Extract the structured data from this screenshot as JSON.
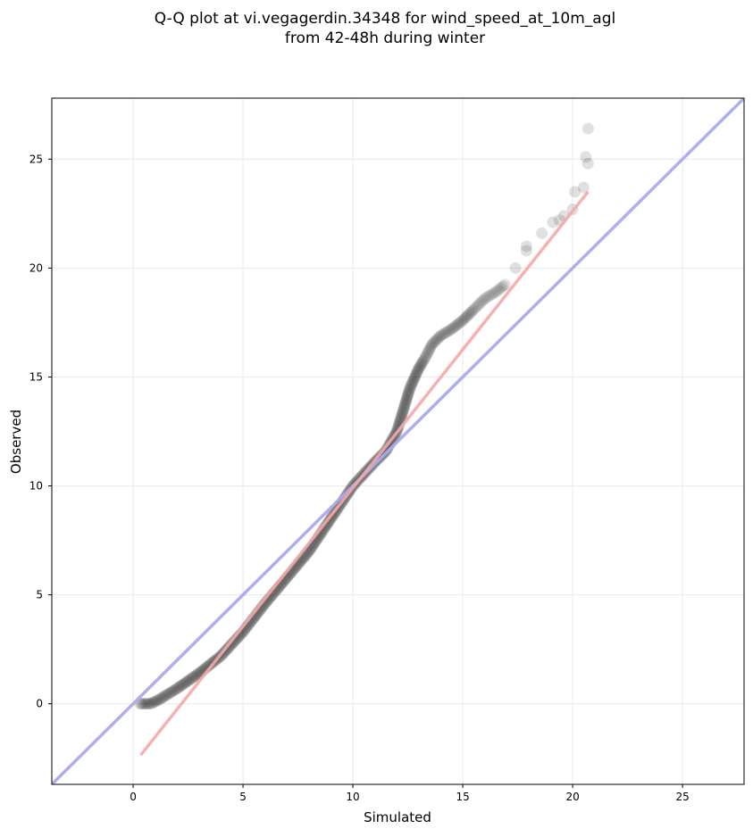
{
  "chart_data": {
    "type": "scatter",
    "title_lines": [
      "Q-Q plot at vi.vegagerdin.34348 for wind_speed_at_10m_agl",
      "from 42-48h during winter"
    ],
    "xlabel": "Simulated",
    "ylabel": "Observed",
    "xlim": [
      -3.7,
      27.8
    ],
    "ylim": [
      -3.7,
      27.8
    ],
    "xticks": [
      0,
      5,
      10,
      15,
      20,
      25
    ],
    "yticks": [
      0,
      5,
      10,
      15,
      20,
      25
    ],
    "grid": true,
    "colors": {
      "points": "#000000",
      "identity_line": "#aaaaee",
      "fit_line": "#f4a8a8",
      "grid": "#ececec"
    },
    "identity_line": {
      "x": [
        -3.7,
        27.8
      ],
      "y": [
        -3.7,
        27.8
      ]
    },
    "fit_line": {
      "x": [
        0.35,
        20.7
      ],
      "y": [
        -2.35,
        23.5
      ]
    },
    "knots": {
      "x": [
        0.3,
        0.8,
        1.2,
        2.0,
        3.0,
        4.0,
        5.0,
        6.0,
        7.0,
        8.0,
        9.0,
        10.0,
        11.0,
        11.5,
        12.0,
        12.3,
        12.6,
        13.0,
        13.3,
        13.6,
        14.0,
        14.5,
        15.0,
        15.5,
        16.0,
        16.5,
        17.0
      ],
      "y": [
        0.0,
        0.0,
        0.2,
        0.7,
        1.4,
        2.2,
        3.3,
        4.6,
        5.8,
        7.0,
        8.5,
        10.0,
        11.1,
        11.6,
        12.5,
        13.5,
        14.5,
        15.4,
        15.9,
        16.5,
        16.9,
        17.2,
        17.6,
        18.1,
        18.6,
        18.9,
        19.3
      ]
    },
    "tail_points": {
      "x": [
        17.4,
        17.9,
        17.9,
        18.6,
        19.1,
        19.4,
        19.6,
        20.0,
        20.1,
        20.5,
        20.7,
        20.6,
        20.7
      ],
      "y": [
        20.0,
        20.8,
        21.0,
        21.6,
        22.1,
        22.2,
        22.4,
        22.7,
        23.5,
        23.7,
        24.8,
        25.1,
        26.4
      ]
    }
  }
}
